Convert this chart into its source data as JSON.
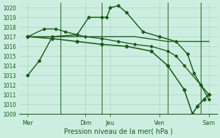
{
  "bg_color": "#cceee0",
  "grid_color": "#aad4c0",
  "line_color": "#1a5c1a",
  "xlabel": "Pression niveau de la mer( hPa )",
  "ylim": [
    1009,
    1020.5
  ],
  "yticks": [
    1009,
    1010,
    1011,
    1012,
    1013,
    1014,
    1015,
    1016,
    1017,
    1018,
    1019,
    1020
  ],
  "xlim": [
    0,
    12
  ],
  "day_ticks": [
    0.5,
    4.0,
    5.5,
    8.5,
    11.5
  ],
  "day_labels": [
    "Mer",
    "Dim",
    "Jeu",
    "Ven",
    "Sam"
  ],
  "vlines_x": [
    2.5,
    5.0,
    9.0,
    11.0
  ],
  "vline_color": "#336633",
  "lines": [
    {
      "x": [
        0.5,
        1.2,
        2.0,
        3.5,
        4.2,
        5.0,
        5.3,
        5.5,
        6.0,
        6.5,
        7.5,
        8.5,
        9.5,
        10.2,
        10.6,
        11.0,
        11.5
      ],
      "y": [
        1013,
        1014.5,
        1017,
        1017.2,
        1019,
        1019,
        1019,
        1020,
        1020.2,
        1019.5,
        1017.5,
        1017,
        1016.5,
        1015.2,
        1013.2,
        1012.0,
        1011
      ],
      "marker": "D",
      "markersize": 2.2,
      "linewidth": 1.1
    },
    {
      "x": [
        0.5,
        3.0,
        5.0,
        7.0,
        9.0,
        11.5
      ],
      "y": [
        1017,
        1017,
        1017,
        1017,
        1016.5,
        1016.5
      ],
      "marker": null,
      "markersize": 0,
      "linewidth": 1.0
    },
    {
      "x": [
        0.5,
        1.5,
        2.2,
        2.8,
        3.5,
        4.0,
        5.0,
        6.0,
        7.0,
        8.0,
        9.0,
        9.5,
        10.0,
        11.0,
        11.5
      ],
      "y": [
        1017,
        1017.8,
        1017.8,
        1017.5,
        1017.2,
        1017,
        1016.8,
        1016.5,
        1016.2,
        1016,
        1015.5,
        1015,
        1014,
        1012,
        1010.5
      ],
      "marker": "D",
      "markersize": 2.0,
      "linewidth": 1.0
    },
    {
      "x": [
        0.5,
        2.0,
        3.5,
        5.0,
        6.5,
        8.0,
        9.0,
        10.0,
        10.5,
        10.8,
        11.2,
        11.5
      ],
      "y": [
        1017,
        1016.8,
        1016.5,
        1016.2,
        1016,
        1015.5,
        1014,
        1011.5,
        1009,
        1009.8,
        1010.5,
        1011
      ],
      "marker": "D",
      "markersize": 2.5,
      "linewidth": 1.2
    }
  ],
  "figsize": [
    3.2,
    2.0
  ],
  "dpi": 100
}
